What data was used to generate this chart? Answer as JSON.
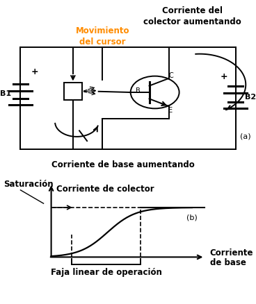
{
  "bg_color": "#ffffff",
  "text_color": "#000000",
  "orange_color": "#FF8C00",
  "label_corriente_del": "Corriente del",
  "label_colector_aumentando_top": "colector aumentando",
  "label_movimiento": "Movimiento",
  "label_del_cursor": "del cursor",
  "label_corriente_base_aumentando": "Corriente de base aumentando",
  "label_a": "(a)",
  "label_b": "(b)",
  "label_saturacion": "Saturación",
  "label_corriente_colector": "Corriente de colector",
  "label_faja": "Faja linear de operación",
  "label_B1": "B1",
  "label_B2": "B2",
  "label_plus1": "+",
  "label_plus2": "+",
  "label_B": "B",
  "label_C": "C",
  "label_E": "E"
}
